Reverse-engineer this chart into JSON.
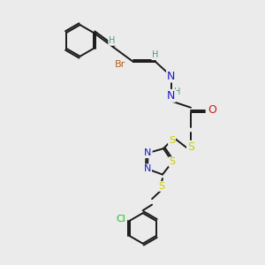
{
  "background_color": "#ebebeb",
  "bond_color": "#1a1a1a",
  "atom_colors": {
    "H": "#4a9a8a",
    "N": "#1a1acc",
    "O": "#cc1a1a",
    "S": "#cccc00",
    "Br": "#b86020",
    "Cl": "#22bb22",
    "C": "#1a1a1a"
  },
  "font_size": 8
}
